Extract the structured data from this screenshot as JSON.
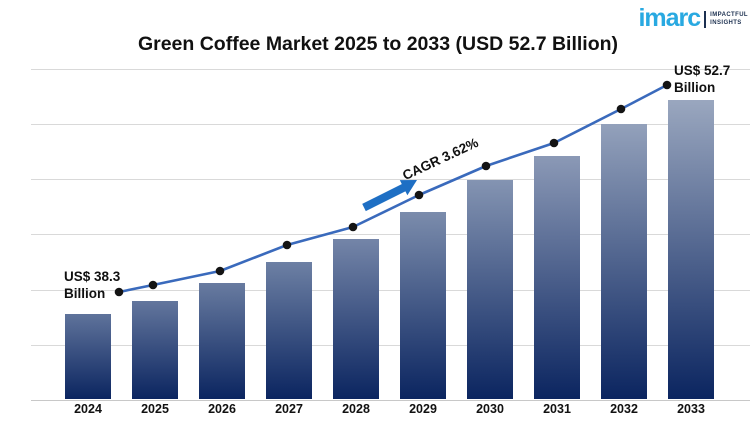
{
  "brand": {
    "name": "imarc",
    "tagline1": "IMPACTFUL",
    "tagline2": "INSIGHTS"
  },
  "header": {
    "title": "Green Coffee Market 2025 to 2033 (USD 52.7 Billion)"
  },
  "annotations": {
    "start": {
      "line1": "US$ 38.3",
      "line2": "Billion"
    },
    "end": {
      "line1": "US$ 52.7",
      "line2": "Billion"
    },
    "cagr": "CAGR 3.62%"
  },
  "chart_data": {
    "type": "bar",
    "categories": [
      "2024",
      "2025",
      "2026",
      "2027",
      "2028",
      "2029",
      "2030",
      "2031",
      "2032",
      "2033"
    ],
    "series": [
      {
        "name": "Green Coffee Market Value (US$ Billion)",
        "type": "bar",
        "values": [
          38.3,
          39.7,
          41.1,
          42.6,
          44.2,
          45.8,
          47.4,
          49.1,
          50.9,
          52.7
        ]
      },
      {
        "name": "Trend line",
        "type": "line",
        "values": [
          38.3,
          39.7,
          41.1,
          42.6,
          44.2,
          45.8,
          47.4,
          49.1,
          50.9,
          52.7
        ]
      }
    ],
    "title": "Green Coffee Market 2025 to 2033 (USD 52.7 Billion)",
    "xlabel": "",
    "ylabel": "",
    "ylim": [
      32.5,
      54
    ],
    "grid": true,
    "legend": "none",
    "cagr_percent": 3.62,
    "start_label": "US$ 38.3 Billion",
    "end_label": "US$ 52.7 Billion"
  },
  "colors": {
    "logo_blue": "#29a9e1",
    "logo_navy": "#1c3050",
    "bar_top_light": "#9aa7bf",
    "bar_top_dark": "#5f739b",
    "bar_bottom": "#0b2560",
    "line": "#3a6abc",
    "marker": "#141414",
    "arrow": "#1e6fc4",
    "gridline": "#d9d9d9",
    "axis": "#c8c8c8",
    "text": "#111111"
  }
}
